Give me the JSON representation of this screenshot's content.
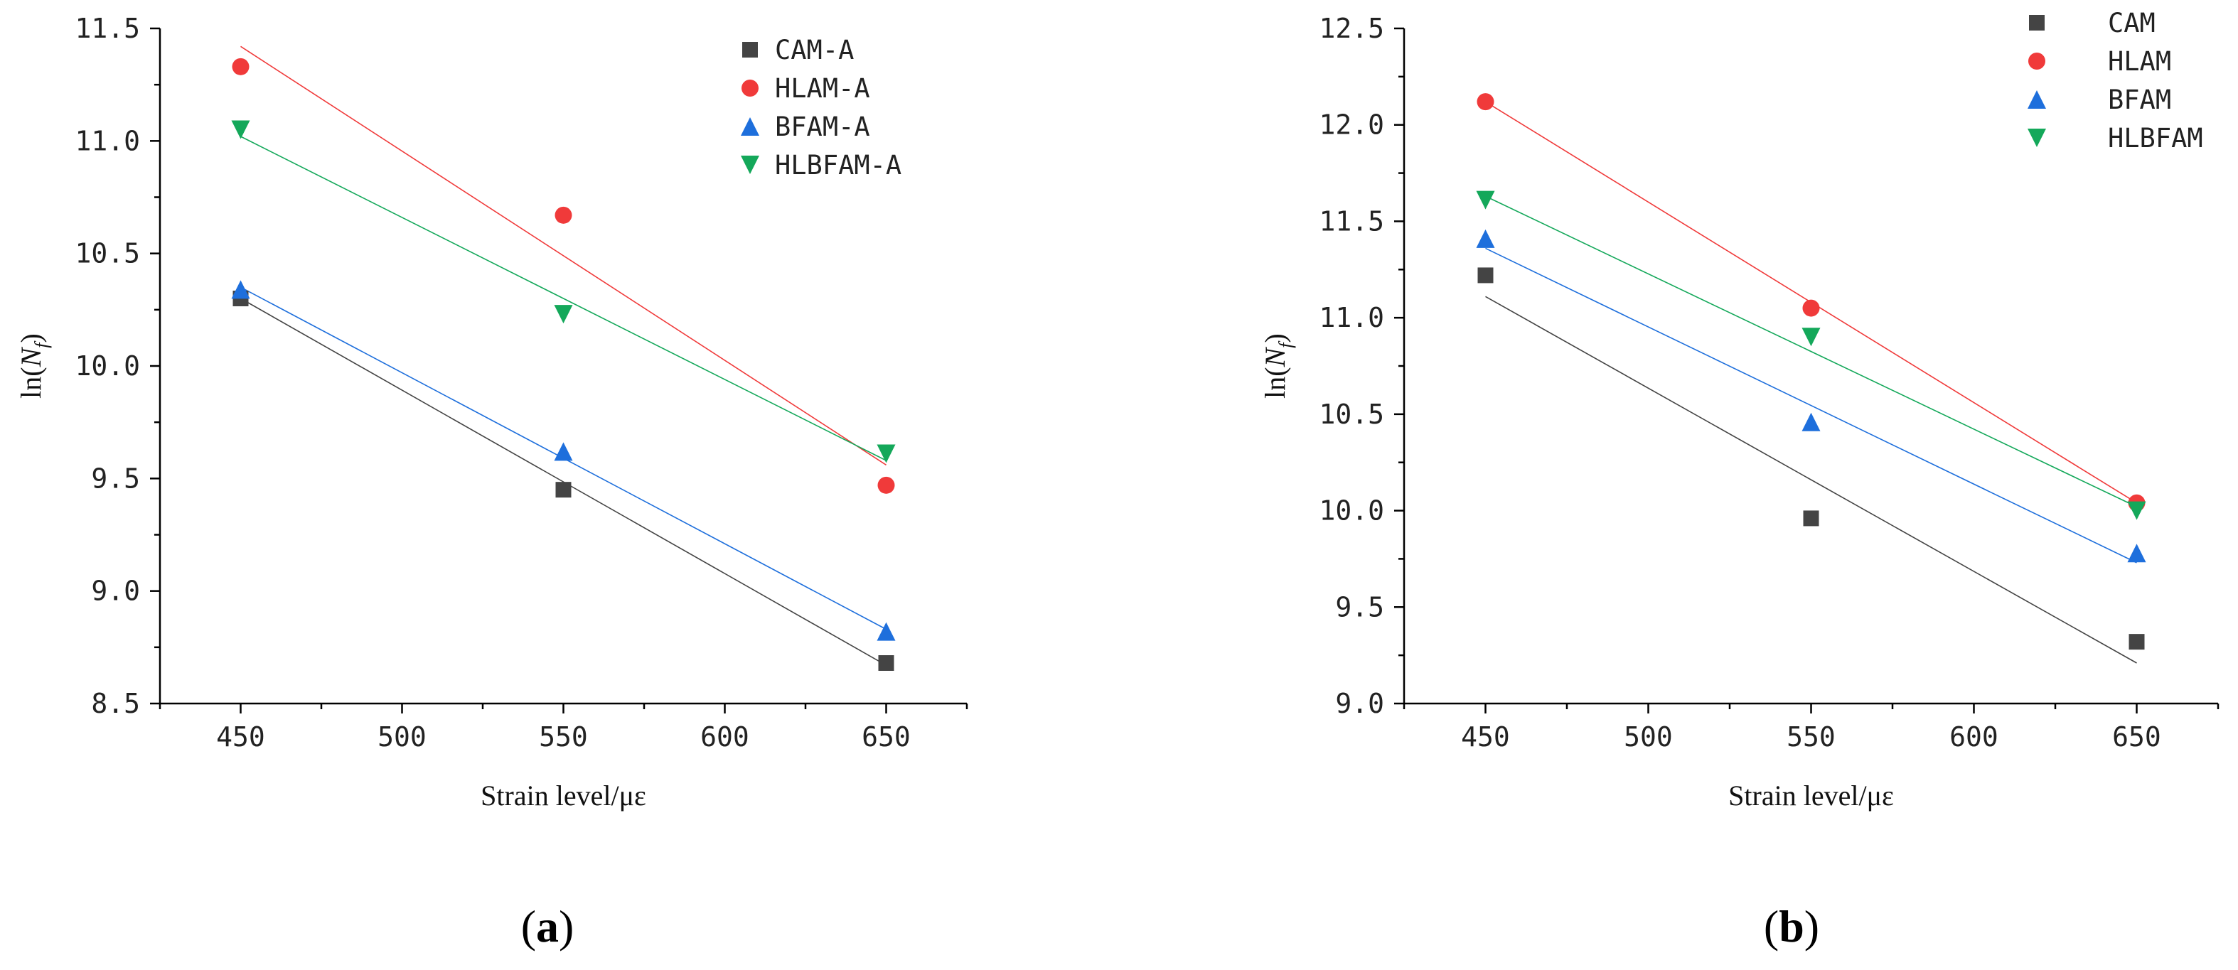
{
  "chart_data": [
    {
      "type": "scatter",
      "panel_label": "a",
      "title": "",
      "xlabel": "Strain level/με",
      "ylabel": "ln(N_f)",
      "ylabel_base": "ln(",
      "ylabel_var": "N",
      "ylabel_sub": "f",
      "ylabel_close": ")",
      "xlim": [
        425,
        675
      ],
      "ylim": [
        8.5,
        11.5
      ],
      "x_ticks": [
        450,
        500,
        550,
        600,
        650
      ],
      "y_ticks": [
        8.5,
        9.0,
        9.5,
        10.0,
        10.5,
        11.0,
        11.5
      ],
      "y_tick_labels": [
        "8.5",
        "9.0",
        "9.5",
        "10.0",
        "10.5",
        "11.0",
        "11.5"
      ],
      "legend_position": "top-right",
      "series": [
        {
          "name": "CAM-A",
          "marker": "square",
          "color": "#444444",
          "x": [
            450,
            550,
            650
          ],
          "y": [
            10.3,
            9.45,
            8.68
          ],
          "fit": [
            10.3,
            8.67
          ]
        },
        {
          "name": "HLAM-A",
          "marker": "circle",
          "color": "#f03a3a",
          "x": [
            450,
            550,
            650
          ],
          "y": [
            11.33,
            10.67,
            9.47
          ],
          "fit": [
            11.42,
            9.56
          ]
        },
        {
          "name": "BFAM-A",
          "marker": "triangle-up",
          "color": "#1e6fdc",
          "x": [
            450,
            550,
            650
          ],
          "y": [
            10.34,
            9.62,
            8.82
          ],
          "fit": [
            10.35,
            8.83
          ]
        },
        {
          "name": "HLBFAM-A",
          "marker": "triangle-down",
          "color": "#14a85a",
          "x": [
            450,
            550,
            650
          ],
          "y": [
            11.05,
            10.23,
            9.61
          ],
          "fit": [
            11.02,
            9.58
          ]
        }
      ]
    },
    {
      "type": "scatter",
      "panel_label": "b",
      "title": "",
      "xlabel": "Strain level/με",
      "ylabel": "ln(N_f)",
      "ylabel_base": "ln(",
      "ylabel_var": "N",
      "ylabel_sub": "f",
      "ylabel_close": ")",
      "xlim": [
        425,
        675
      ],
      "ylim": [
        9.0,
        12.5
      ],
      "x_ticks": [
        450,
        500,
        550,
        600,
        650
      ],
      "y_ticks": [
        9.0,
        9.5,
        10.0,
        10.5,
        11.0,
        11.5,
        12.0,
        12.5
      ],
      "y_tick_labels": [
        "9.0",
        "9.5",
        "10.0",
        "10.5",
        "11.0",
        "11.5",
        "12.0",
        "12.5"
      ],
      "legend_position": "top-right",
      "series": [
        {
          "name": "CAM",
          "marker": "square",
          "color": "#444444",
          "x": [
            450,
            550,
            650
          ],
          "y": [
            11.22,
            9.96,
            9.32
          ],
          "fit": [
            11.11,
            9.21
          ]
        },
        {
          "name": "HLAM",
          "marker": "circle",
          "color": "#f03a3a",
          "x": [
            450,
            550,
            650
          ],
          "y": [
            12.12,
            11.05,
            10.04
          ],
          "fit": [
            12.12,
            10.04
          ]
        },
        {
          "name": "BFAM",
          "marker": "triangle-up",
          "color": "#1e6fdc",
          "x": [
            450,
            550,
            650
          ],
          "y": [
            11.41,
            10.46,
            9.78
          ],
          "fit": [
            11.36,
            9.73
          ]
        },
        {
          "name": "HLBFAM",
          "marker": "triangle-down",
          "color": "#14a85a",
          "x": [
            450,
            550,
            650
          ],
          "y": [
            11.61,
            10.9,
            10.0
          ],
          "fit": [
            11.63,
            10.02
          ]
        }
      ]
    }
  ]
}
